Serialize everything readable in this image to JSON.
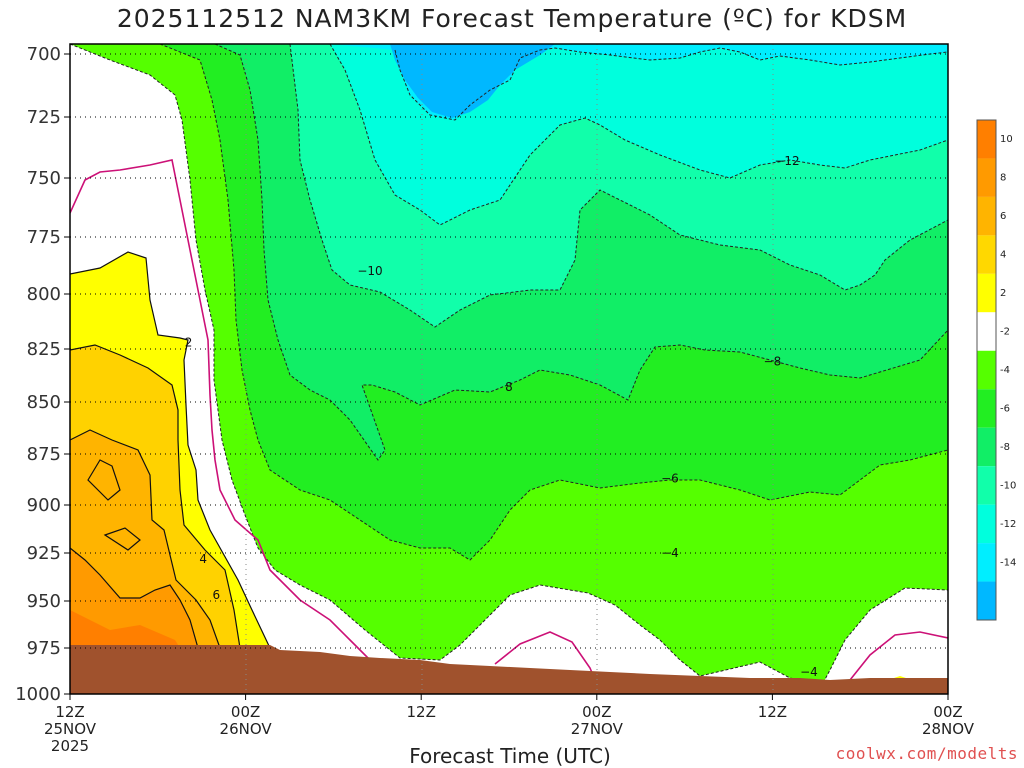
{
  "chart_data": {
    "type": "contour",
    "title": "2025112512 NAM3KM Forecast Temperature (ºC) for KDSM",
    "xlabel": "Forecast Time (UTC)",
    "ylabel": "",
    "credit": "coolwx.com/modelts",
    "y_scale": "pressure (inverted)",
    "y_ticks": [
      700,
      725,
      750,
      775,
      800,
      825,
      850,
      875,
      900,
      925,
      950,
      975,
      1000
    ],
    "y_range": [
      1000,
      700
    ],
    "x_ticks": [
      {
        "hour": 0,
        "lines": [
          "12Z",
          "25NOV",
          "2025"
        ]
      },
      {
        "hour": 12,
        "lines": [
          "00Z",
          "26NOV"
        ]
      },
      {
        "hour": 24,
        "lines": [
          "12Z"
        ]
      },
      {
        "hour": 36,
        "lines": [
          "00Z",
          "27NOV"
        ]
      },
      {
        "hour": 48,
        "lines": [
          "12Z"
        ]
      },
      {
        "hour": 60,
        "lines": [
          "00Z",
          "28NOV"
        ]
      }
    ],
    "x_range_hours": [
      0,
      60
    ],
    "colorbar": {
      "levels": [
        "10",
        "8",
        "6",
        "4",
        "2",
        "-2",
        "-4",
        "-6",
        "-8",
        "-10",
        "-12",
        "-14"
      ],
      "colors": [
        "#ff7f00",
        "#ff9a00",
        "#ffb400",
        "#ffd800",
        "#ffff00",
        "#ffffff",
        "#55ff00",
        "#22ee22",
        "#11ee66",
        "#11ffaa",
        "#00ffdd",
        "#00eeff",
        "#00b8ff"
      ]
    },
    "contour_labels": [
      {
        "text": "2",
        "hour": 8.1,
        "p": 822
      },
      {
        "text": "4",
        "hour": 9.1,
        "p": 928
      },
      {
        "text": "6",
        "hour": 10.0,
        "p": 947
      },
      {
        "text": "−10",
        "hour": 20.5,
        "p": 790
      },
      {
        "text": "8",
        "hour": 30.0,
        "p": 843
      },
      {
        "text": "−8",
        "hour": 48.0,
        "p": 831
      },
      {
        "text": "−6",
        "hour": 41.0,
        "p": 887
      },
      {
        "text": "−4",
        "hour": 41.0,
        "p": 925
      },
      {
        "text": "−12",
        "hour": 49.0,
        "p": 743
      },
      {
        "text": "−4",
        "hour": 50.5,
        "p": 988
      }
    ],
    "ground": "below surface (brown)"
  }
}
